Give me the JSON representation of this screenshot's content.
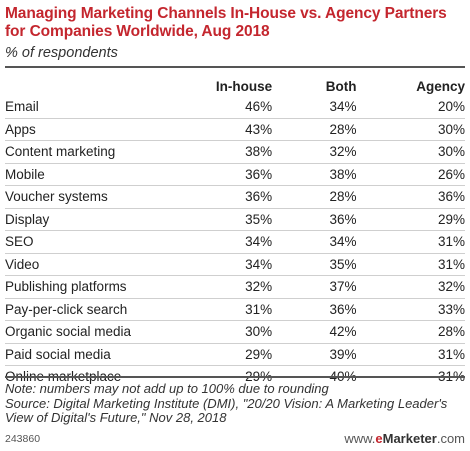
{
  "header": {
    "title": "Managing Marketing Channels In-House vs. Agency Partners for Companies Worldwide, Aug 2018",
    "subtitle": "% of respondents"
  },
  "chart_data": {
    "type": "table",
    "title": "Managing Marketing Channels In-House vs. Agency Partners for Companies Worldwide, Aug 2018",
    "subtitle": "% of respondents",
    "columns": [
      "",
      "In-house",
      "Both",
      "Agency"
    ],
    "rows": [
      {
        "label": "Email",
        "values": [
          "46%",
          "34%",
          "20%"
        ]
      },
      {
        "label": "Apps",
        "values": [
          "43%",
          "28%",
          "30%"
        ]
      },
      {
        "label": "Content marketing",
        "values": [
          "38%",
          "32%",
          "30%"
        ]
      },
      {
        "label": "Mobile",
        "values": [
          "36%",
          "38%",
          "26%"
        ]
      },
      {
        "label": "Voucher systems",
        "values": [
          "36%",
          "28%",
          "36%"
        ]
      },
      {
        "label": "Display",
        "values": [
          "35%",
          "36%",
          "29%"
        ]
      },
      {
        "label": "SEO",
        "values": [
          "34%",
          "34%",
          "31%"
        ]
      },
      {
        "label": "Video",
        "values": [
          "34%",
          "35%",
          "31%"
        ]
      },
      {
        "label": "Publishing platforms",
        "values": [
          "32%",
          "37%",
          "32%"
        ]
      },
      {
        "label": "Pay-per-click search",
        "values": [
          "31%",
          "36%",
          "33%"
        ]
      },
      {
        "label": "Organic social media",
        "values": [
          "30%",
          "42%",
          "28%"
        ]
      },
      {
        "label": "Paid social media",
        "values": [
          "29%",
          "39%",
          "31%"
        ]
      },
      {
        "label": "Online marketplace",
        "values": [
          "29%",
          "40%",
          "31%"
        ]
      }
    ]
  },
  "footer": {
    "note": "Note: numbers may not add up to 100% due to rounding",
    "source": "Source: Digital Marketing Institute (DMI), \"20/20 Vision: A Marketing Leader's View of Digital's Future,\" Nov 28, 2018",
    "code": "243860",
    "brand_prefix": "www.",
    "brand_e": "e",
    "brand_name": "Marketer",
    "brand_suffix": ".com"
  }
}
